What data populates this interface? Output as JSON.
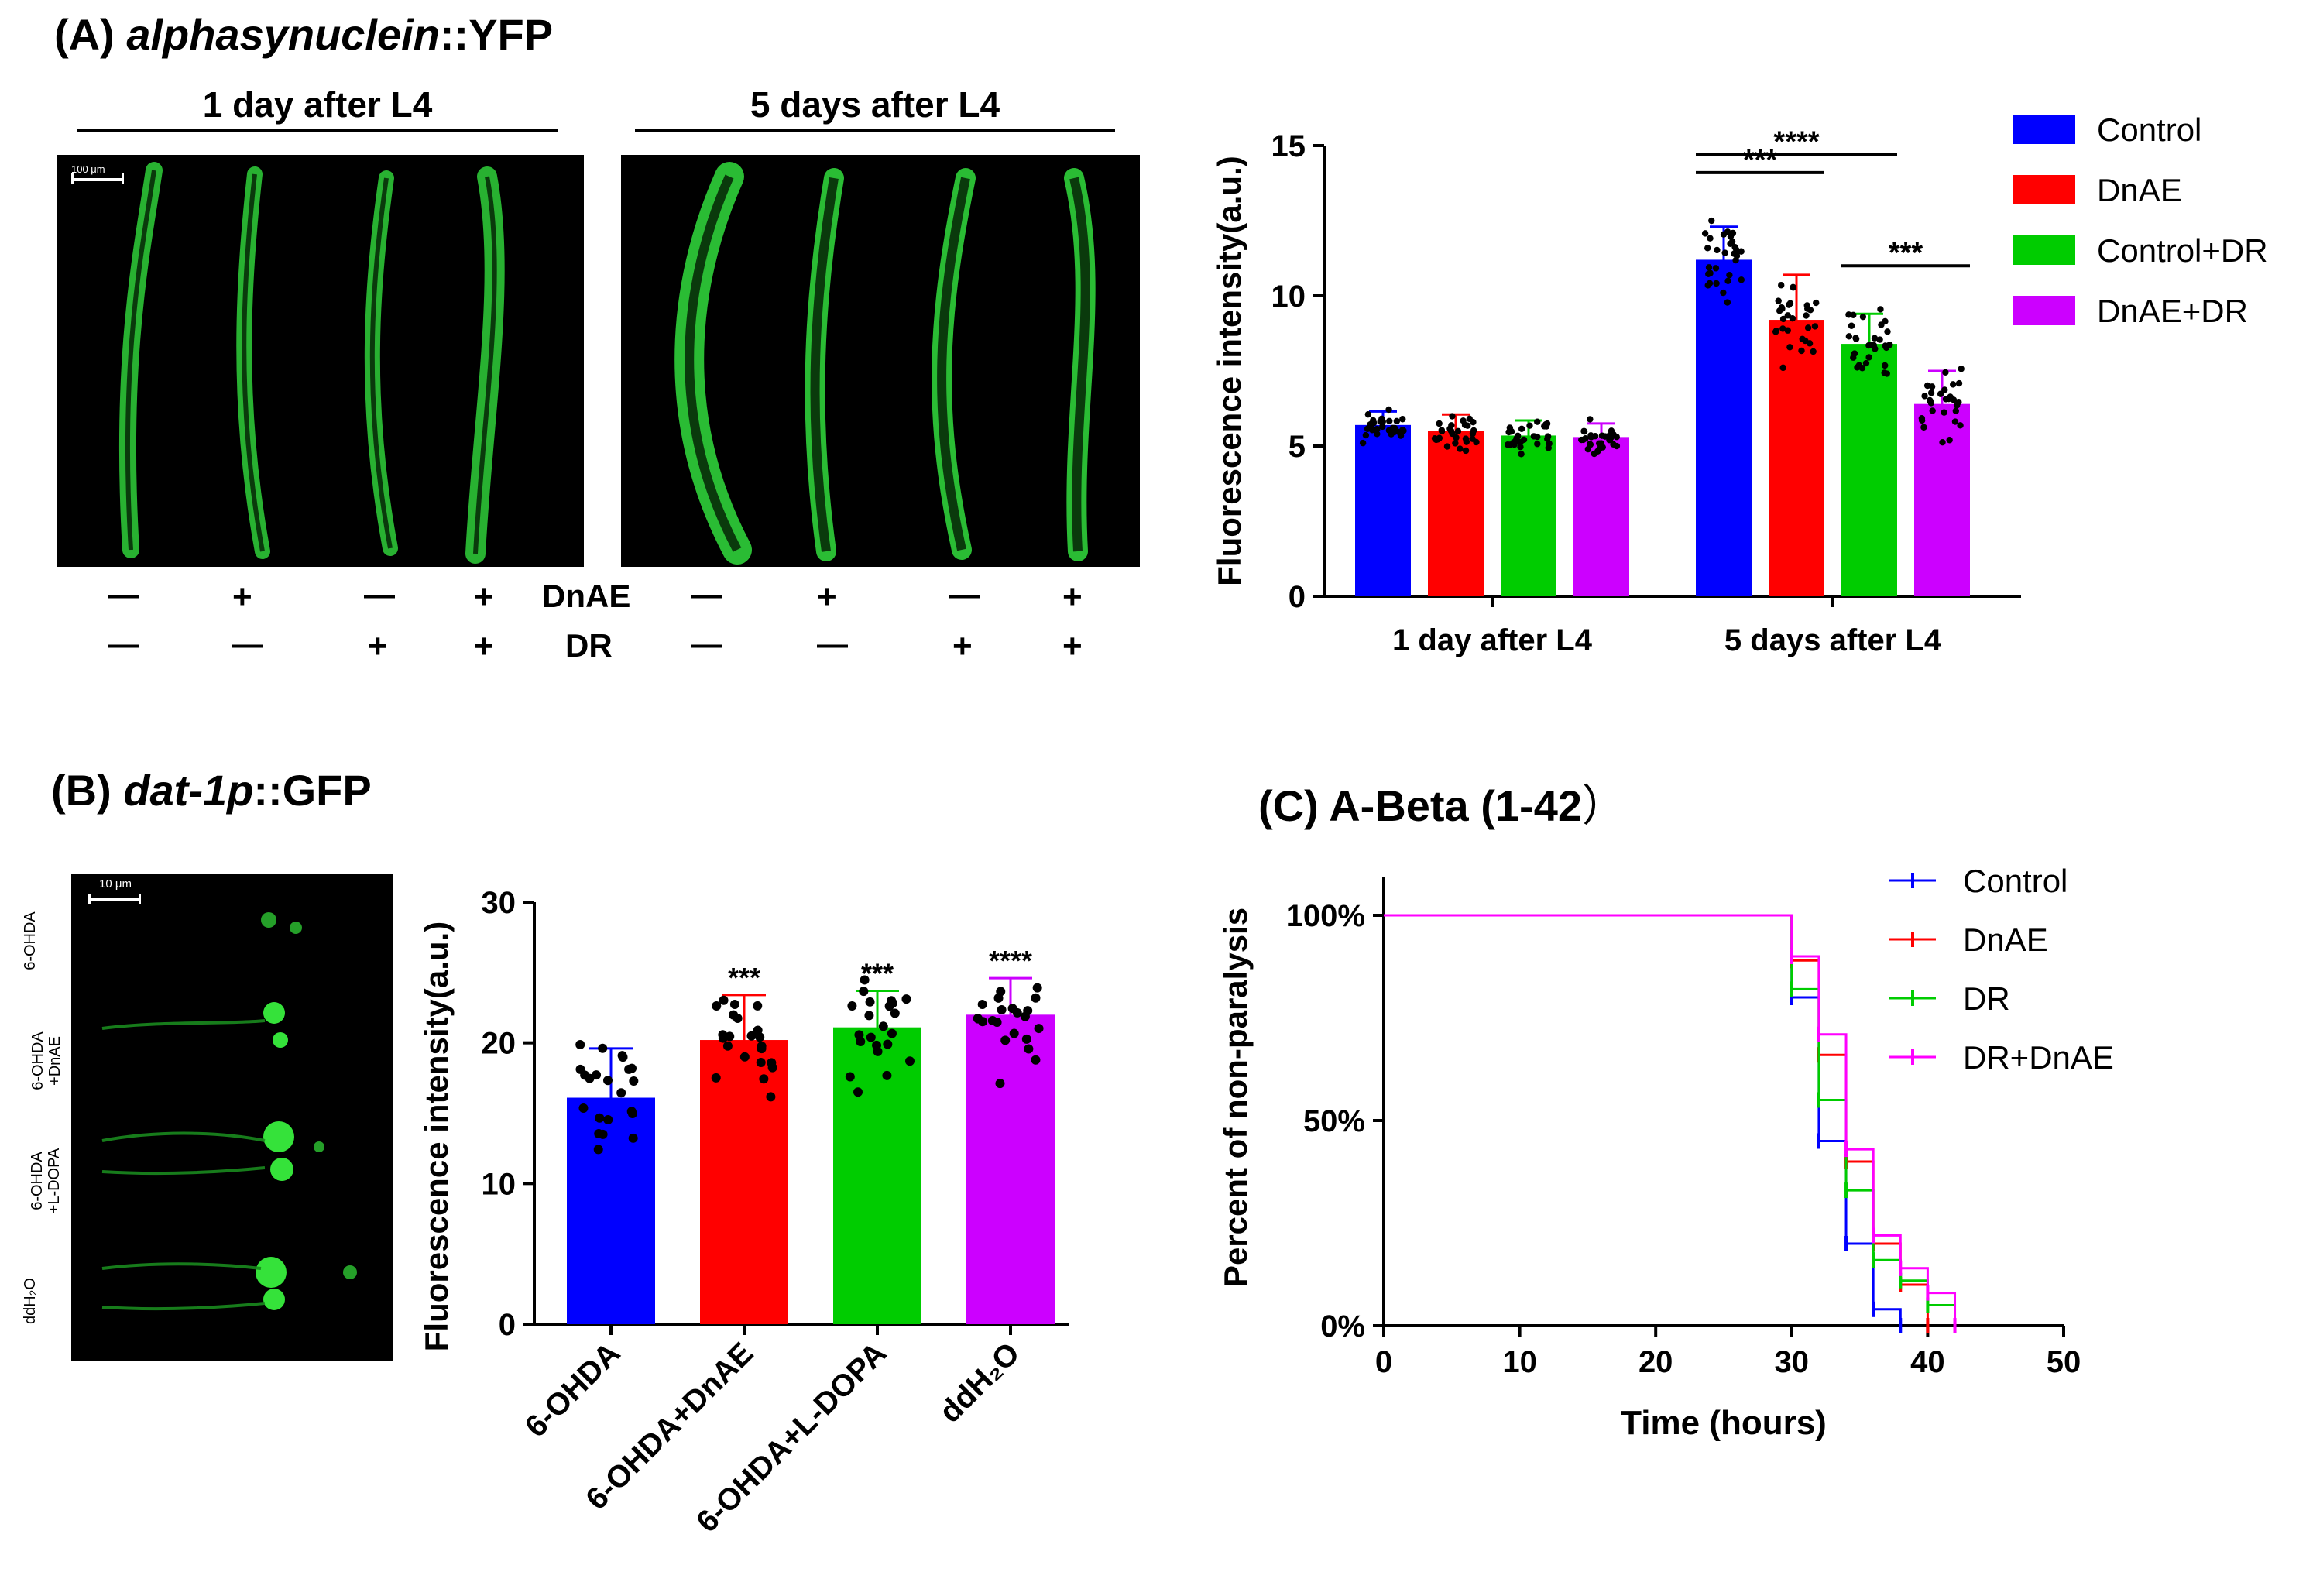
{
  "panelA": {
    "label": "(A)",
    "gene_italic": "alphasynuclein",
    "gene_suffix": "::YFP",
    "group1_header": "1 day after L4",
    "group2_header": "5 days after L4",
    "scale_bar": "100 μm",
    "row_dnae_label": "DnAE",
    "row_dr_label": "DR",
    "dnae_signs": [
      "—",
      "+",
      "—",
      "+"
    ],
    "dr_signs": [
      "—",
      "—",
      "+",
      "+"
    ],
    "colors": {
      "worm": "#2fd03a",
      "image_bg": "#000000"
    }
  },
  "panelB": {
    "label": "(B)",
    "gene_italic": "dat-1p",
    "gene_suffix": "::GFP",
    "scale_bar": "10 μm",
    "row_labels": [
      "6-OHDA",
      "6-OHDA\n+DnAE",
      "6-OHDA\n+L-DOPA",
      "ddH₂O"
    ]
  },
  "panelC": {
    "label": "(C)",
    "title": "A-Beta (1-42",
    "title_paren": "）"
  },
  "chart_data": [
    {
      "id": "chartA",
      "type": "bar",
      "ylabel": "Fluorescence intensity(a.u.)",
      "ylim": [
        0,
        15
      ],
      "yticks": [
        0,
        5,
        10,
        15
      ],
      "groups": [
        "1 day after L4",
        "5 days after L4"
      ],
      "series": [
        {
          "name": "Control",
          "color": "#0000ff",
          "values": [
            5.7,
            11.2
          ],
          "err": [
            0.45,
            1.1
          ]
        },
        {
          "name": "DnAE",
          "color": "#ff0000",
          "values": [
            5.5,
            9.2
          ],
          "err": [
            0.55,
            1.5
          ]
        },
        {
          "name": "Control+DR",
          "color": "#00cc00",
          "values": [
            5.35,
            8.4
          ],
          "err": [
            0.5,
            1.0
          ]
        },
        {
          "name": "DnAE+DR",
          "color": "#cc00ff",
          "values": [
            5.3,
            6.4
          ],
          "err": [
            0.45,
            1.1
          ]
        }
      ],
      "significance": [
        {
          "from": 0,
          "to": 2,
          "group": 1,
          "text": "****",
          "y": 14.7
        },
        {
          "from": 0,
          "to": 1,
          "group": 1,
          "text": "***",
          "y": 14.1
        },
        {
          "from": 2,
          "to": 3,
          "group": 1,
          "text": "***",
          "y": 11.0
        }
      ]
    },
    {
      "id": "chartB",
      "type": "bar",
      "ylabel": "Fluorescence intensity(a.u.)",
      "ylim": [
        0,
        30
      ],
      "yticks": [
        0,
        10,
        20,
        30
      ],
      "categories": [
        "6-OHDA",
        "6-OHDA+DnAE",
        "6-OHDA+L-DOPA",
        "ddH₂O"
      ],
      "values": [
        16.1,
        20.2,
        21.1,
        22.0
      ],
      "err": [
        3.5,
        3.2,
        2.6,
        2.6
      ],
      "colors": [
        "#0000ff",
        "#ff0000",
        "#00cc00",
        "#cc00ff"
      ],
      "stars": [
        "",
        "***",
        "***",
        "****"
      ]
    },
    {
      "id": "chartC",
      "type": "line",
      "xlabel": "Time (hours)",
      "ylabel": "Percent of non-paralysis",
      "xlim": [
        0,
        50
      ],
      "ylim": [
        0,
        100
      ],
      "xticks": [
        0,
        10,
        20,
        30,
        40,
        50
      ],
      "yticks": [
        0,
        50,
        100
      ],
      "ytick_labels": [
        "0%",
        "50%",
        "100%"
      ],
      "series": [
        {
          "name": "Control",
          "color": "#0000ff",
          "x": [
            0,
            30,
            32,
            34,
            36,
            38
          ],
          "y": [
            100,
            80,
            45,
            20,
            4,
            0
          ]
        },
        {
          "name": "DnAE",
          "color": "#ff0000",
          "x": [
            0,
            30,
            32,
            34,
            36,
            38,
            40
          ],
          "y": [
            100,
            89,
            66,
            40,
            20,
            10,
            0
          ]
        },
        {
          "name": "DR",
          "color": "#00cc00",
          "x": [
            0,
            30,
            32,
            34,
            36,
            38,
            40,
            42
          ],
          "y": [
            100,
            82,
            55,
            33,
            16,
            11,
            5,
            0
          ]
        },
        {
          "name": "DR+DnAE",
          "color": "#ff00ff",
          "x": [
            0,
            30,
            32,
            34,
            36,
            38,
            40,
            42
          ],
          "y": [
            100,
            90,
            71,
            43,
            22,
            14,
            8,
            0
          ]
        }
      ]
    }
  ]
}
